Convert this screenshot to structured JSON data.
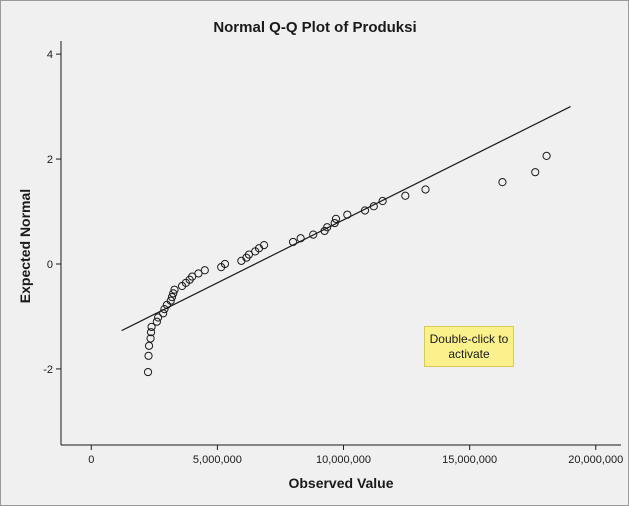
{
  "chart_data": {
    "type": "scatter",
    "title": "Normal Q-Q Plot of Produksi",
    "xlabel": "Observed Value",
    "ylabel": "Expected Normal",
    "xlim": [
      -1200000,
      21000000
    ],
    "ylim": [
      -3.45,
      4.25
    ],
    "xticks": [
      0,
      5000000,
      10000000,
      15000000,
      20000000
    ],
    "xtick_labels": [
      "0",
      "5,000,000",
      "10,000,000",
      "15,000,000",
      "20,000,000"
    ],
    "yticks": [
      -2,
      0,
      2,
      4
    ],
    "ytick_labels": [
      "-2",
      "0",
      "2",
      "4"
    ],
    "reference_line": {
      "x": [
        1200000,
        19000000
      ],
      "y": [
        -1.27,
        3.0
      ]
    },
    "points": [
      {
        "x": 2250000,
        "y": -2.06
      },
      {
        "x": 2270000,
        "y": -1.75
      },
      {
        "x": 2290000,
        "y": -1.56
      },
      {
        "x": 2350000,
        "y": -1.42
      },
      {
        "x": 2370000,
        "y": -1.3
      },
      {
        "x": 2390000,
        "y": -1.2
      },
      {
        "x": 2600000,
        "y": -1.1
      },
      {
        "x": 2650000,
        "y": -1.02
      },
      {
        "x": 2850000,
        "y": -0.94
      },
      {
        "x": 2900000,
        "y": -0.86
      },
      {
        "x": 3000000,
        "y": -0.78
      },
      {
        "x": 3150000,
        "y": -0.7
      },
      {
        "x": 3200000,
        "y": -0.63
      },
      {
        "x": 3250000,
        "y": -0.56
      },
      {
        "x": 3300000,
        "y": -0.49
      },
      {
        "x": 3600000,
        "y": -0.42
      },
      {
        "x": 3750000,
        "y": -0.36
      },
      {
        "x": 3900000,
        "y": -0.3
      },
      {
        "x": 4000000,
        "y": -0.24
      },
      {
        "x": 4250000,
        "y": -0.18
      },
      {
        "x": 4500000,
        "y": -0.12
      },
      {
        "x": 5150000,
        "y": -0.06
      },
      {
        "x": 5300000,
        "y": 0.0
      },
      {
        "x": 5950000,
        "y": 0.06
      },
      {
        "x": 6150000,
        "y": 0.12
      },
      {
        "x": 6250000,
        "y": 0.18
      },
      {
        "x": 6500000,
        "y": 0.24
      },
      {
        "x": 6650000,
        "y": 0.3
      },
      {
        "x": 6850000,
        "y": 0.36
      },
      {
        "x": 8000000,
        "y": 0.42
      },
      {
        "x": 8300000,
        "y": 0.49
      },
      {
        "x": 8800000,
        "y": 0.56
      },
      {
        "x": 9250000,
        "y": 0.63
      },
      {
        "x": 9350000,
        "y": 0.7
      },
      {
        "x": 9650000,
        "y": 0.78
      },
      {
        "x": 9700000,
        "y": 0.86
      },
      {
        "x": 10150000,
        "y": 0.94
      },
      {
        "x": 10850000,
        "y": 1.02
      },
      {
        "x": 11200000,
        "y": 1.1
      },
      {
        "x": 11550000,
        "y": 1.2
      },
      {
        "x": 12450000,
        "y": 1.3
      },
      {
        "x": 13250000,
        "y": 1.42
      },
      {
        "x": 16300000,
        "y": 1.56
      },
      {
        "x": 17600000,
        "y": 1.75
      },
      {
        "x": 18050000,
        "y": 2.06
      }
    ]
  },
  "tooltip": {
    "line1": "Double-click to",
    "line2": "activate"
  },
  "colors": {
    "plot_background": "#f0f0f0",
    "axis": "#1a1a1a",
    "marker_stroke": "#1a1a1a",
    "tooltip_background": "#fbf18c"
  }
}
